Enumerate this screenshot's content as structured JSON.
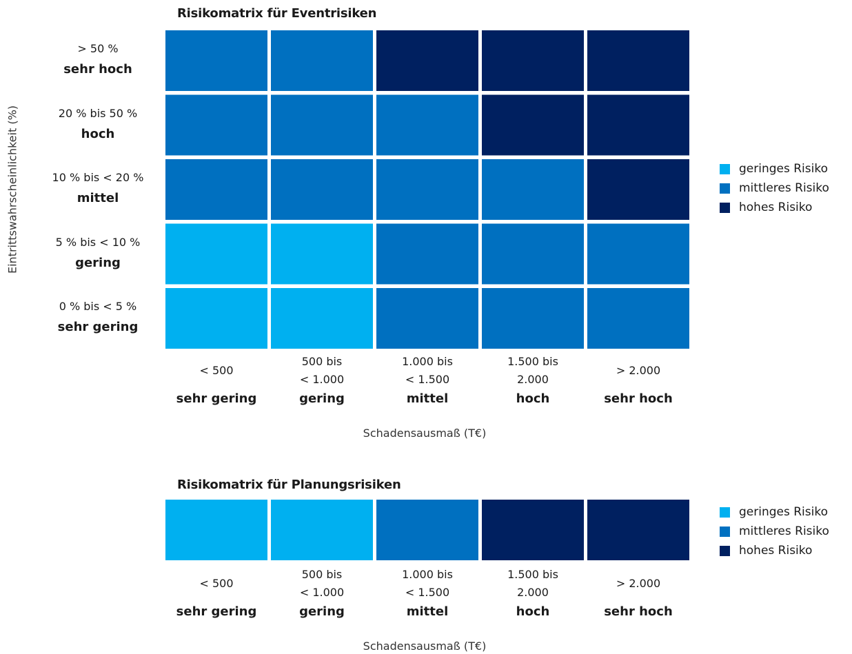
{
  "chart_data": [
    {
      "type": "heatmap",
      "title": "Risikomatrix für Eventrisiken",
      "xlabel": "Schadensausmaß (T€)",
      "ylabel": "Eintrittswahrscheinlichkeit (%)",
      "x_categories": [
        {
          "range": "< 500",
          "level": "sehr gering"
        },
        {
          "range": "500 bis\n< 1.000",
          "level": "gering"
        },
        {
          "range": "1.000 bis\n< 1.500",
          "level": "mittel"
        },
        {
          "range": "1.500 bis\n2.000",
          "level": "hoch"
        },
        {
          "range": "> 2.000",
          "level": "sehr hoch"
        }
      ],
      "y_categories": [
        {
          "range": "> 50 %",
          "level": "sehr hoch"
        },
        {
          "range": "20 % bis 50 %",
          "level": "hoch"
        },
        {
          "range": "10 % bis < 20 %",
          "level": "mittel"
        },
        {
          "range": "5 % bis < 10 %",
          "level": "gering"
        },
        {
          "range": "0 % bis < 5 %",
          "level": "sehr gering"
        }
      ],
      "cells": [
        [
          "mittel",
          "mittel",
          "hoch",
          "hoch",
          "hoch"
        ],
        [
          "mittel",
          "mittel",
          "mittel",
          "hoch",
          "hoch"
        ],
        [
          "mittel",
          "mittel",
          "mittel",
          "mittel",
          "hoch"
        ],
        [
          "gering",
          "gering",
          "mittel",
          "mittel",
          "mittel"
        ],
        [
          "gering",
          "gering",
          "mittel",
          "mittel",
          "mittel"
        ]
      ],
      "legend": [
        {
          "key": "gering",
          "label": "geringes Risiko",
          "color": "#00b0f0"
        },
        {
          "key": "mittel",
          "label": "mittleres Risiko",
          "color": "#0070c0"
        },
        {
          "key": "hoch",
          "label": "hohes Risiko",
          "color": "#002060"
        }
      ]
    },
    {
      "type": "heatmap",
      "title": "Risikomatrix für Planungsrisiken",
      "xlabel": "Schadensausmaß (T€)",
      "x_categories": [
        {
          "range": "< 500",
          "level": "sehr gering"
        },
        {
          "range": "500 bis\n< 1.000",
          "level": "gering"
        },
        {
          "range": "1.000 bis\n< 1.500",
          "level": "mittel"
        },
        {
          "range": "1.500 bis\n2.000",
          "level": "hoch"
        },
        {
          "range": "> 2.000",
          "level": "sehr hoch"
        }
      ],
      "cells": [
        [
          "gering",
          "gering",
          "mittel",
          "hoch",
          "hoch"
        ]
      ],
      "legend": [
        {
          "key": "gering",
          "label": "geringes Risiko",
          "color": "#00b0f0"
        },
        {
          "key": "mittel",
          "label": "mittleres Risiko",
          "color": "#0070c0"
        },
        {
          "key": "hoch",
          "label": "hohes Risiko",
          "color": "#002060"
        }
      ]
    }
  ]
}
